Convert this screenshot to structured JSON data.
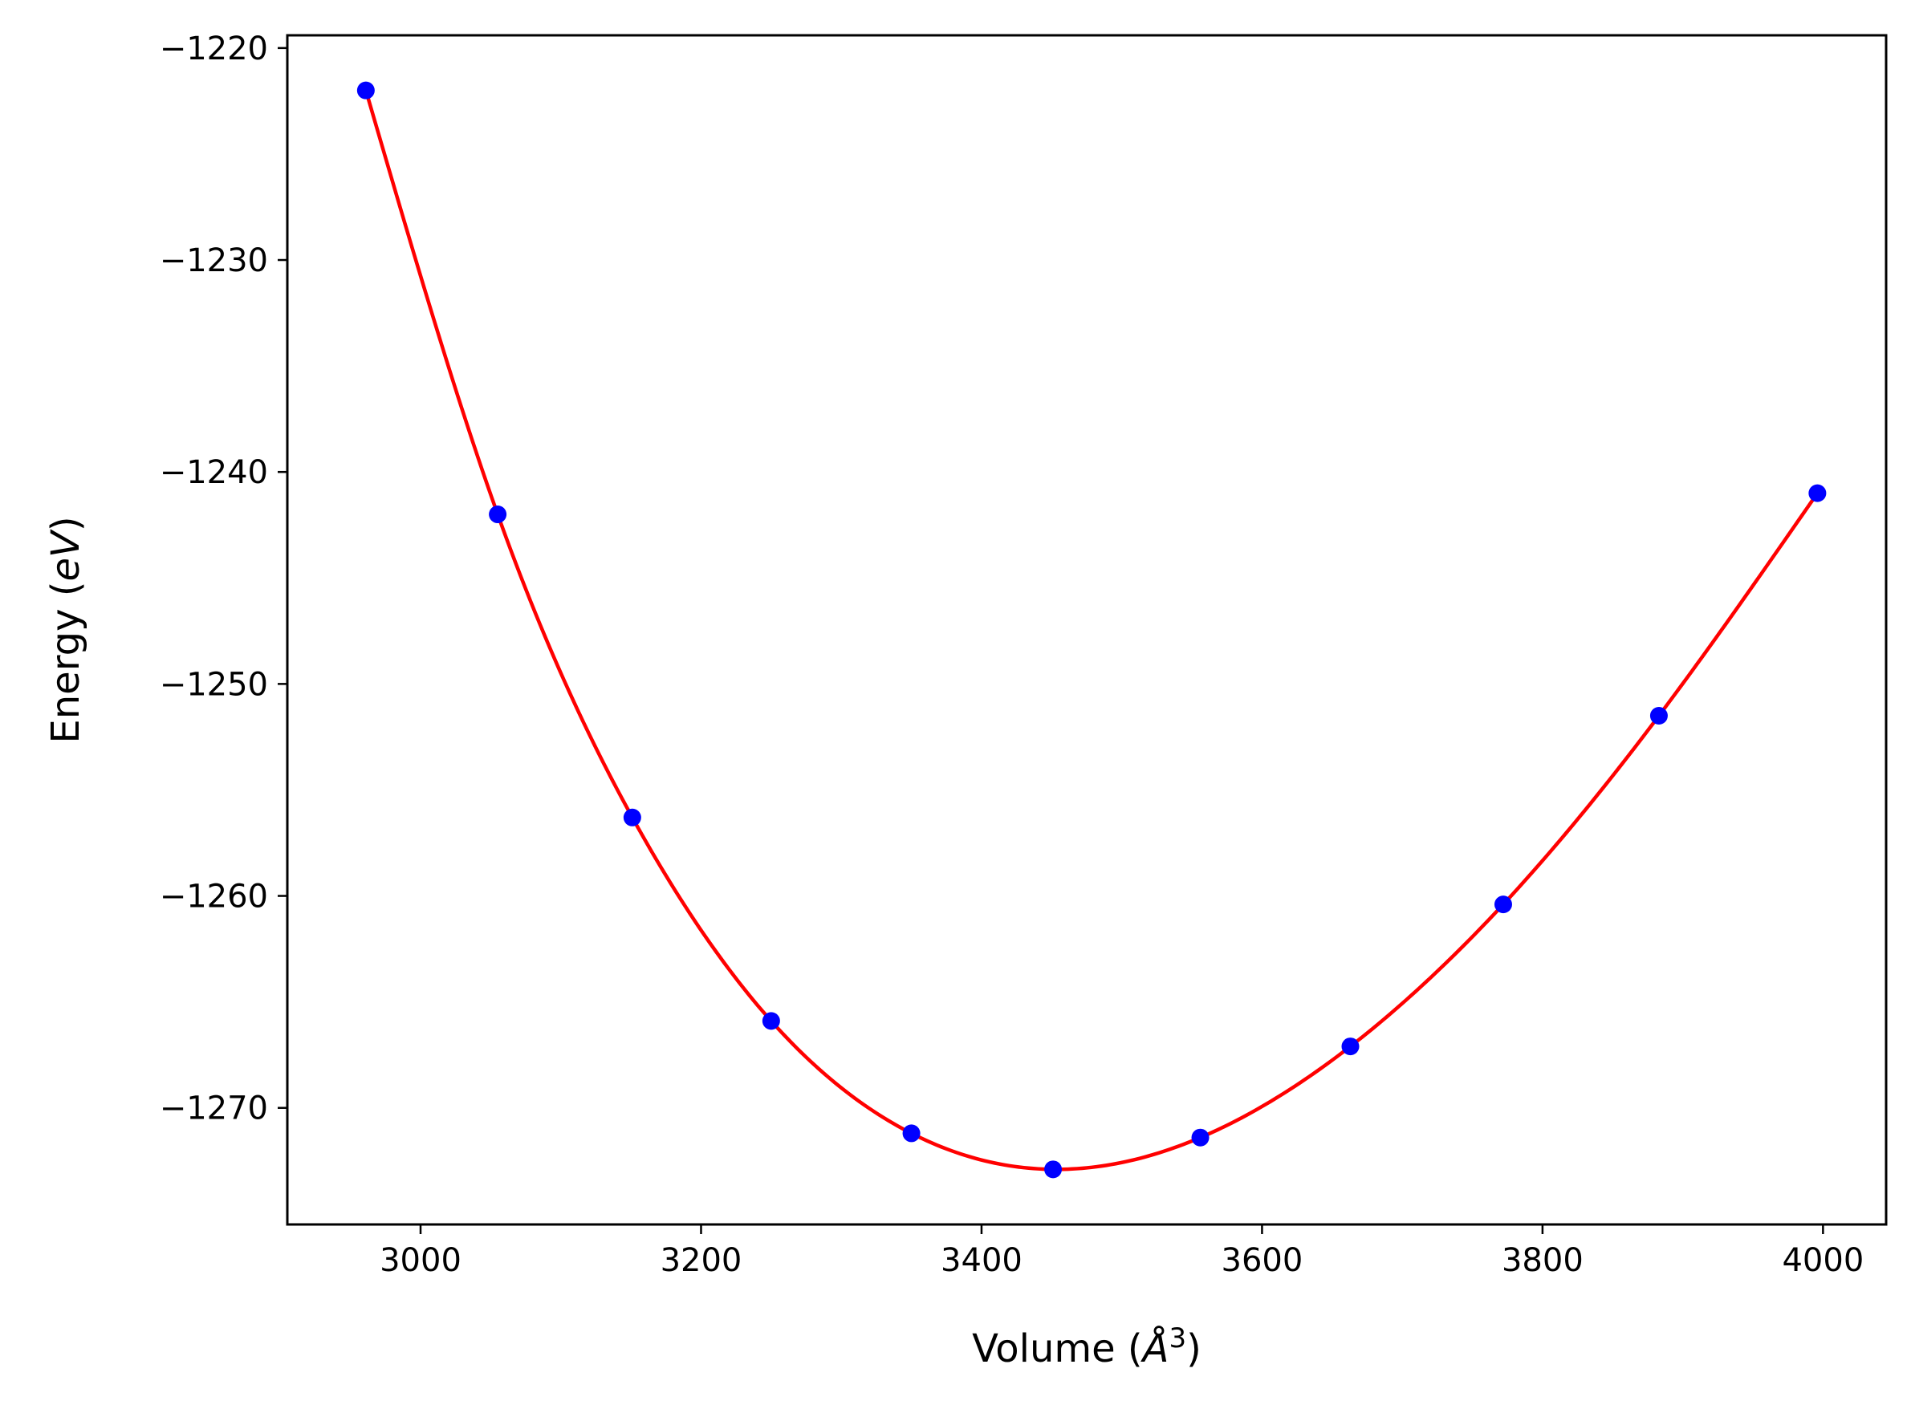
{
  "chart_data": {
    "type": "scatter",
    "xlabel": "Volume (Å³)",
    "xlabel_parts": {
      "prefix": "Volume (",
      "symbol": "Å",
      "exponent": "3",
      "suffix": ")"
    },
    "ylabel": "Energy (eV)",
    "ylabel_parts": {
      "prefix": "Energy (",
      "unit": "eV",
      "suffix": ")"
    },
    "xlim": [
      2905,
      4045
    ],
    "ylim": [
      -1275.5,
      -1219.4
    ],
    "x_ticks": [
      3000,
      3200,
      3400,
      3600,
      3800,
      4000
    ],
    "x_tick_labels": [
      "3000",
      "3200",
      "3400",
      "3600",
      "3800",
      "4000"
    ],
    "y_ticks": [
      -1220,
      -1230,
      -1240,
      -1250,
      -1260,
      -1270
    ],
    "y_tick_labels": [
      "−1220",
      "−1230",
      "−1240",
      "−1250",
      "−1260",
      "−1270"
    ],
    "grid": false,
    "legend": "none",
    "series": [
      {
        "kind": "markers",
        "color": "#0000ff",
        "x": [
          2961,
          3055,
          3151,
          3250,
          3350,
          3451,
          3556,
          3663,
          3772,
          3883,
          3996
        ],
        "y": [
          -1222.0,
          -1242.0,
          -1256.3,
          -1265.9,
          -1271.2,
          -1272.9,
          -1271.4,
          -1267.1,
          -1260.4,
          -1251.5,
          -1241.0
        ]
      },
      {
        "kind": "fit-curve",
        "color": "#ff0000",
        "x": [
          2961,
          3055,
          3151,
          3250,
          3350,
          3451,
          3556,
          3663,
          3772,
          3883,
          3996
        ],
        "y": [
          -1222.0,
          -1242.0,
          -1256.3,
          -1265.9,
          -1271.2,
          -1272.9,
          -1271.4,
          -1267.1,
          -1260.4,
          -1251.5,
          -1241.0
        ]
      }
    ]
  }
}
